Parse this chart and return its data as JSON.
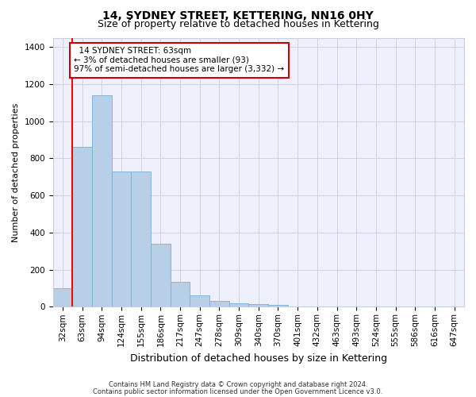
{
  "title": "14, SYDNEY STREET, KETTERING, NN16 0HY",
  "subtitle": "Size of property relative to detached houses in Kettering",
  "xlabel": "Distribution of detached houses by size in Kettering",
  "ylabel": "Number of detached properties",
  "footnote1": "Contains HM Land Registry data © Crown copyright and database right 2024.",
  "footnote2": "Contains public sector information licensed under the Open Government Licence v3.0.",
  "bins": [
    "32sqm",
    "63sqm",
    "94sqm",
    "124sqm",
    "155sqm",
    "186sqm",
    "217sqm",
    "247sqm",
    "278sqm",
    "309sqm",
    "340sqm",
    "370sqm",
    "401sqm",
    "432sqm",
    "463sqm",
    "493sqm",
    "524sqm",
    "555sqm",
    "586sqm",
    "616sqm",
    "647sqm"
  ],
  "values": [
    100,
    860,
    1140,
    730,
    730,
    340,
    135,
    60,
    30,
    20,
    15,
    10,
    0,
    0,
    0,
    0,
    0,
    0,
    0,
    0,
    0
  ],
  "bar_color": "#b8cfe8",
  "bar_edge_color": "#7aaed6",
  "red_line_index": 1,
  "annotation_line1": "  14 SYDNEY STREET: 63sqm",
  "annotation_line2": "← 3% of detached houses are smaller (93)",
  "annotation_line3": "97% of semi-detached houses are larger (3,332) →",
  "annotation_box_color": "#ffffff",
  "annotation_box_edge": "#cc0000",
  "ylim": [
    0,
    1450
  ],
  "yticks": [
    0,
    200,
    400,
    600,
    800,
    1000,
    1200,
    1400
  ],
  "bg_color": "#eef1fb",
  "grid_color": "#c8cde0",
  "title_fontsize": 10,
  "subtitle_fontsize": 9,
  "ylabel_fontsize": 8,
  "xlabel_fontsize": 9,
  "tick_fontsize": 7.5,
  "annot_fontsize": 7.5,
  "footnote_fontsize": 6
}
